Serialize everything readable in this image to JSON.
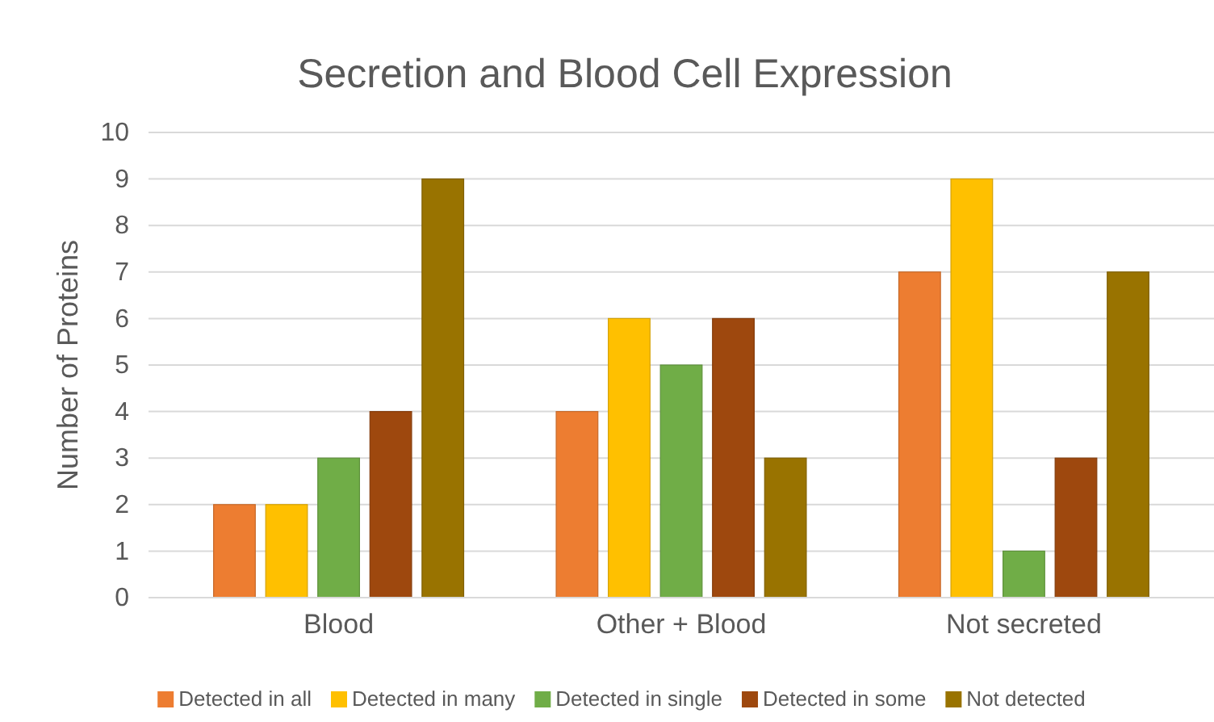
{
  "chart_data": {
    "type": "bar",
    "title": "Secretion and Blood Cell Expression",
    "ylabel": "Number of Proteins",
    "categories": [
      "Blood",
      "Other + Blood",
      "Not secreted"
    ],
    "series": [
      {
        "name": "Detected in all",
        "color": "#ed7d31",
        "values": [
          2,
          4,
          7
        ]
      },
      {
        "name": "Detected in many",
        "color": "#ffc000",
        "values": [
          2,
          6,
          9
        ]
      },
      {
        "name": "Detected in single",
        "color": "#70ad47",
        "values": [
          3,
          5,
          1
        ]
      },
      {
        "name": "Detected in some",
        "color": "#9e480e",
        "values": [
          4,
          6,
          3
        ]
      },
      {
        "name": "Not detected",
        "color": "#997300",
        "values": [
          9,
          3,
          7
        ]
      }
    ],
    "ylim": [
      0,
      10
    ],
    "yticks": [
      0,
      1,
      2,
      3,
      4,
      5,
      6,
      7,
      8,
      9,
      10
    ],
    "grid": "y",
    "legend": "bottom"
  }
}
